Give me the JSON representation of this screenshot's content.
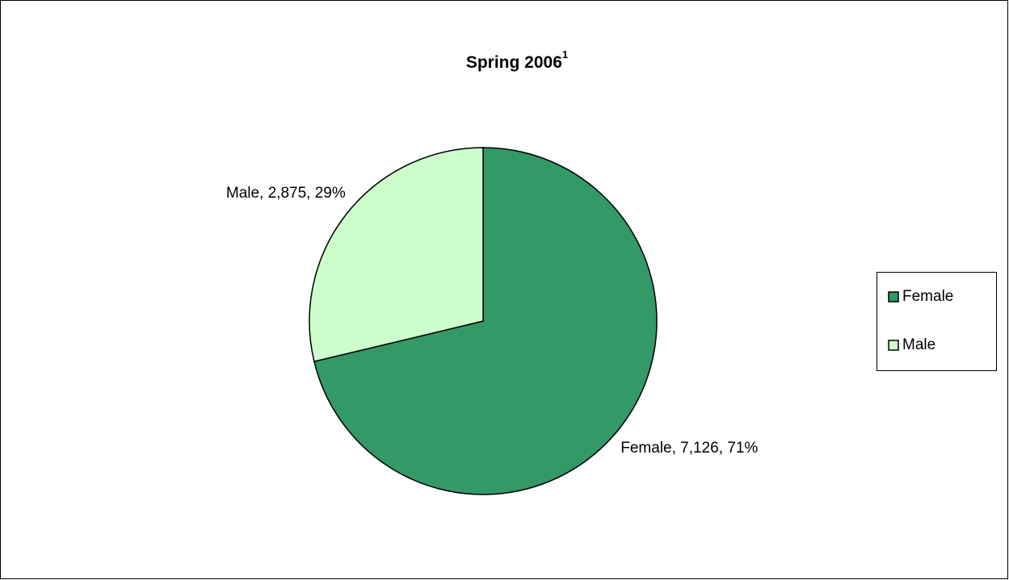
{
  "chart_data": {
    "type": "pie",
    "title": "Spring 2006",
    "title_note": "1",
    "categories": [
      "Female",
      "Male"
    ],
    "values": [
      7126,
      2875
    ],
    "value_labels": [
      "Female, 7,126, 71%",
      "Male, 2,875, 29%"
    ],
    "colors": [
      "#339966",
      "#ccffcc"
    ],
    "legend": "right"
  }
}
